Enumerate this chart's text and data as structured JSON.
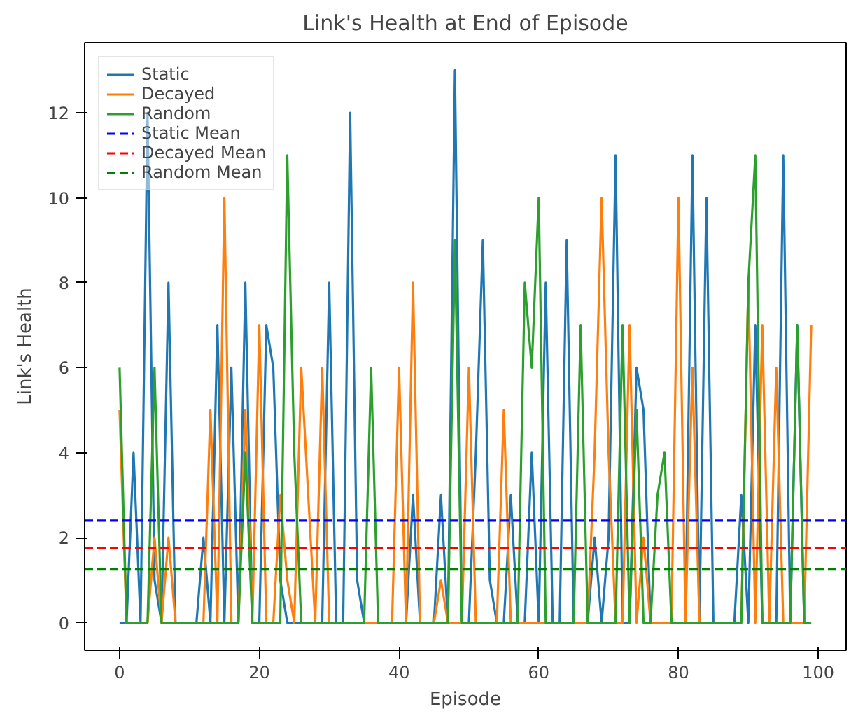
{
  "chart_data": {
    "type": "line",
    "title": "Link's Health at End of Episode",
    "xlabel": "Episode",
    "ylabel": "Link's Health",
    "x": [
      0,
      1,
      2,
      3,
      4,
      5,
      6,
      7,
      8,
      9,
      10,
      11,
      12,
      13,
      14,
      15,
      16,
      17,
      18,
      19,
      20,
      21,
      22,
      23,
      24,
      25,
      26,
      27,
      28,
      29,
      30,
      31,
      32,
      33,
      34,
      35,
      36,
      37,
      38,
      39,
      40,
      41,
      42,
      43,
      44,
      45,
      46,
      47,
      48,
      49,
      50,
      51,
      52,
      53,
      54,
      55,
      56,
      57,
      58,
      59,
      60,
      61,
      62,
      63,
      64,
      65,
      66,
      67,
      68,
      69,
      70,
      71,
      72,
      73,
      74,
      75,
      76,
      77,
      78,
      79,
      80,
      81,
      82,
      83,
      84,
      85,
      86,
      87,
      88,
      89,
      90,
      91,
      92,
      93,
      94,
      95,
      96,
      97,
      98,
      99
    ],
    "series": [
      {
        "name": "Static",
        "color": "#1f77b4",
        "values": [
          0,
          0,
          4,
          0,
          12,
          1,
          0,
          8,
          0,
          0,
          0,
          0,
          2,
          0,
          7,
          0,
          6,
          0,
          8,
          0,
          0,
          7,
          6,
          1,
          0,
          0,
          0,
          0,
          0,
          0,
          8,
          0,
          0,
          12,
          1,
          0,
          0,
          0,
          0,
          0,
          0,
          0,
          3,
          0,
          0,
          0,
          3,
          0,
          13,
          0,
          0,
          4,
          9,
          1,
          0,
          0,
          3,
          0,
          0,
          4,
          0,
          8,
          0,
          0,
          9,
          0,
          0,
          0,
          2,
          0,
          2,
          11,
          0,
          0,
          6,
          5,
          0,
          0,
          0,
          0,
          0,
          0,
          11,
          0,
          10,
          0,
          0,
          0,
          0,
          3,
          0,
          7,
          0,
          0,
          0,
          11,
          0,
          7,
          0,
          0
        ]
      },
      {
        "name": "Decayed",
        "color": "#ff7f0e",
        "values": [
          5,
          0,
          0,
          0,
          0,
          2,
          0,
          2,
          0,
          0,
          0,
          0,
          0,
          5,
          0,
          10,
          0,
          0,
          5,
          0,
          7,
          0,
          0,
          3,
          1,
          0,
          6,
          3,
          0,
          6,
          0,
          0,
          0,
          0,
          0,
          0,
          0,
          0,
          0,
          0,
          6,
          0,
          8,
          0,
          0,
          0,
          1,
          0,
          0,
          0,
          6,
          0,
          0,
          0,
          0,
          5,
          0,
          0,
          0,
          0,
          0,
          0,
          0,
          0,
          0,
          0,
          0,
          0,
          4,
          10,
          4,
          0,
          0,
          7,
          0,
          2,
          0,
          0,
          0,
          0,
          10,
          0,
          6,
          0,
          0,
          0,
          0,
          0,
          0,
          0,
          8,
          0,
          7,
          0,
          6,
          0,
          0,
          0,
          0,
          7
        ]
      },
      {
        "name": "Random",
        "color": "#2ca02c",
        "values": [
          6,
          0,
          0,
          0,
          0,
          6,
          0,
          0,
          0,
          0,
          0,
          0,
          0,
          0,
          0,
          0,
          0,
          0,
          4,
          0,
          0,
          0,
          0,
          0,
          11,
          4,
          0,
          0,
          0,
          0,
          0,
          0,
          0,
          0,
          0,
          0,
          6,
          0,
          0,
          0,
          0,
          0,
          0,
          0,
          0,
          0,
          0,
          0,
          9,
          0,
          0,
          0,
          0,
          0,
          0,
          0,
          0,
          0,
          8,
          6,
          10,
          0,
          0,
          0,
          0,
          0,
          7,
          0,
          0,
          0,
          0,
          0,
          7,
          0,
          5,
          0,
          0,
          3,
          4,
          0,
          0,
          0,
          0,
          0,
          0,
          0,
          0,
          0,
          0,
          0,
          8,
          11,
          0,
          0,
          0,
          0,
          0,
          7,
          0,
          0
        ]
      }
    ],
    "ref_lines": [
      {
        "axis": "y",
        "value": 2.4,
        "label": "Static Mean",
        "color": "#0000ff",
        "line_style": "dashed"
      },
      {
        "axis": "y",
        "value": 1.75,
        "label": "Decayed Mean",
        "color": "#ff0000",
        "line_style": "dashed"
      },
      {
        "axis": "y",
        "value": 1.25,
        "label": "Random Mean",
        "color": "#008000",
        "line_style": "dashed"
      }
    ],
    "xlim": [
      -5,
      104
    ],
    "ylim": [
      -0.65,
      13.65
    ],
    "xticks": [
      0,
      20,
      40,
      60,
      80,
      100
    ],
    "yticks": [
      0,
      2,
      4,
      6,
      8,
      10,
      12
    ],
    "legend": "top left",
    "grid": false
  }
}
